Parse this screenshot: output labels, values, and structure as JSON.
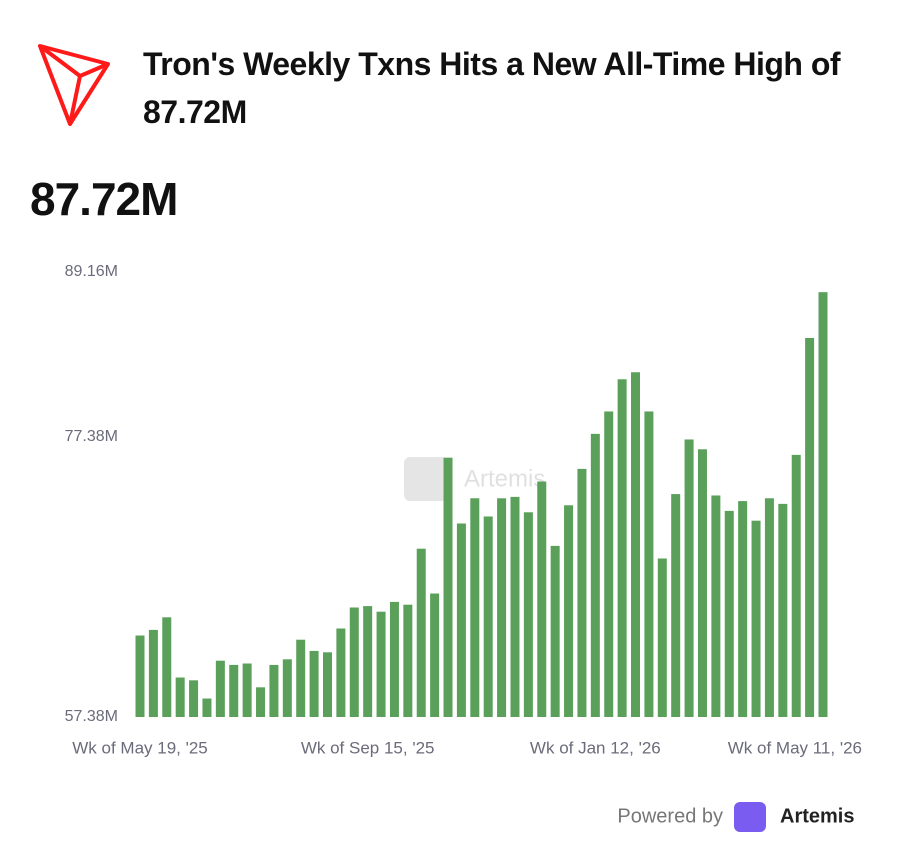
{
  "chart_data": {
    "type": "bar",
    "title": "Tron's Weekly Txns Hits a New All-Time High of 87.72M",
    "headline": "87.72M",
    "watermark": "Artemis",
    "footer": {
      "prefix": "Powered by",
      "brand": "Artemis"
    },
    "color": "#5aa05a",
    "categories": [
      "Wk of May 19, '25",
      null,
      null,
      null,
      null,
      null,
      null,
      null,
      null,
      null,
      null,
      null,
      null,
      null,
      null,
      null,
      null,
      "Wk of Sep 15, '25",
      null,
      null,
      null,
      null,
      null,
      null,
      null,
      null,
      null,
      null,
      null,
      null,
      null,
      null,
      null,
      null,
      "Wk of Jan 12, '26",
      null,
      null,
      null,
      null,
      null,
      null,
      null,
      null,
      null,
      null,
      null,
      null,
      null,
      null,
      null,
      null,
      "Wk of May 11, '26"
    ],
    "values": [
      63.2,
      63.6,
      64.5,
      60.2,
      60.0,
      58.7,
      61.4,
      61.1,
      61.2,
      59.5,
      61.1,
      61.5,
      62.9,
      62.1,
      62.0,
      63.7,
      65.2,
      65.3,
      64.9,
      65.6,
      65.4,
      69.4,
      66.2,
      75.9,
      71.2,
      73.0,
      71.7,
      73.0,
      73.1,
      72.0,
      74.2,
      69.6,
      72.5,
      75.1,
      77.6,
      79.2,
      81.5,
      82.0,
      79.2,
      68.7,
      73.3,
      77.2,
      76.5,
      73.2,
      72.1,
      72.8,
      71.4,
      73.0,
      72.6,
      76.1,
      84.45,
      87.72
    ],
    "ylim": [
      57.38,
      89.16
    ],
    "yticks": [
      {
        "value": 57.38,
        "label": "57.38M"
      },
      {
        "value": 77.38,
        "label": "77.38M"
      },
      {
        "value": 89.16,
        "label": "89.16M"
      }
    ]
  }
}
